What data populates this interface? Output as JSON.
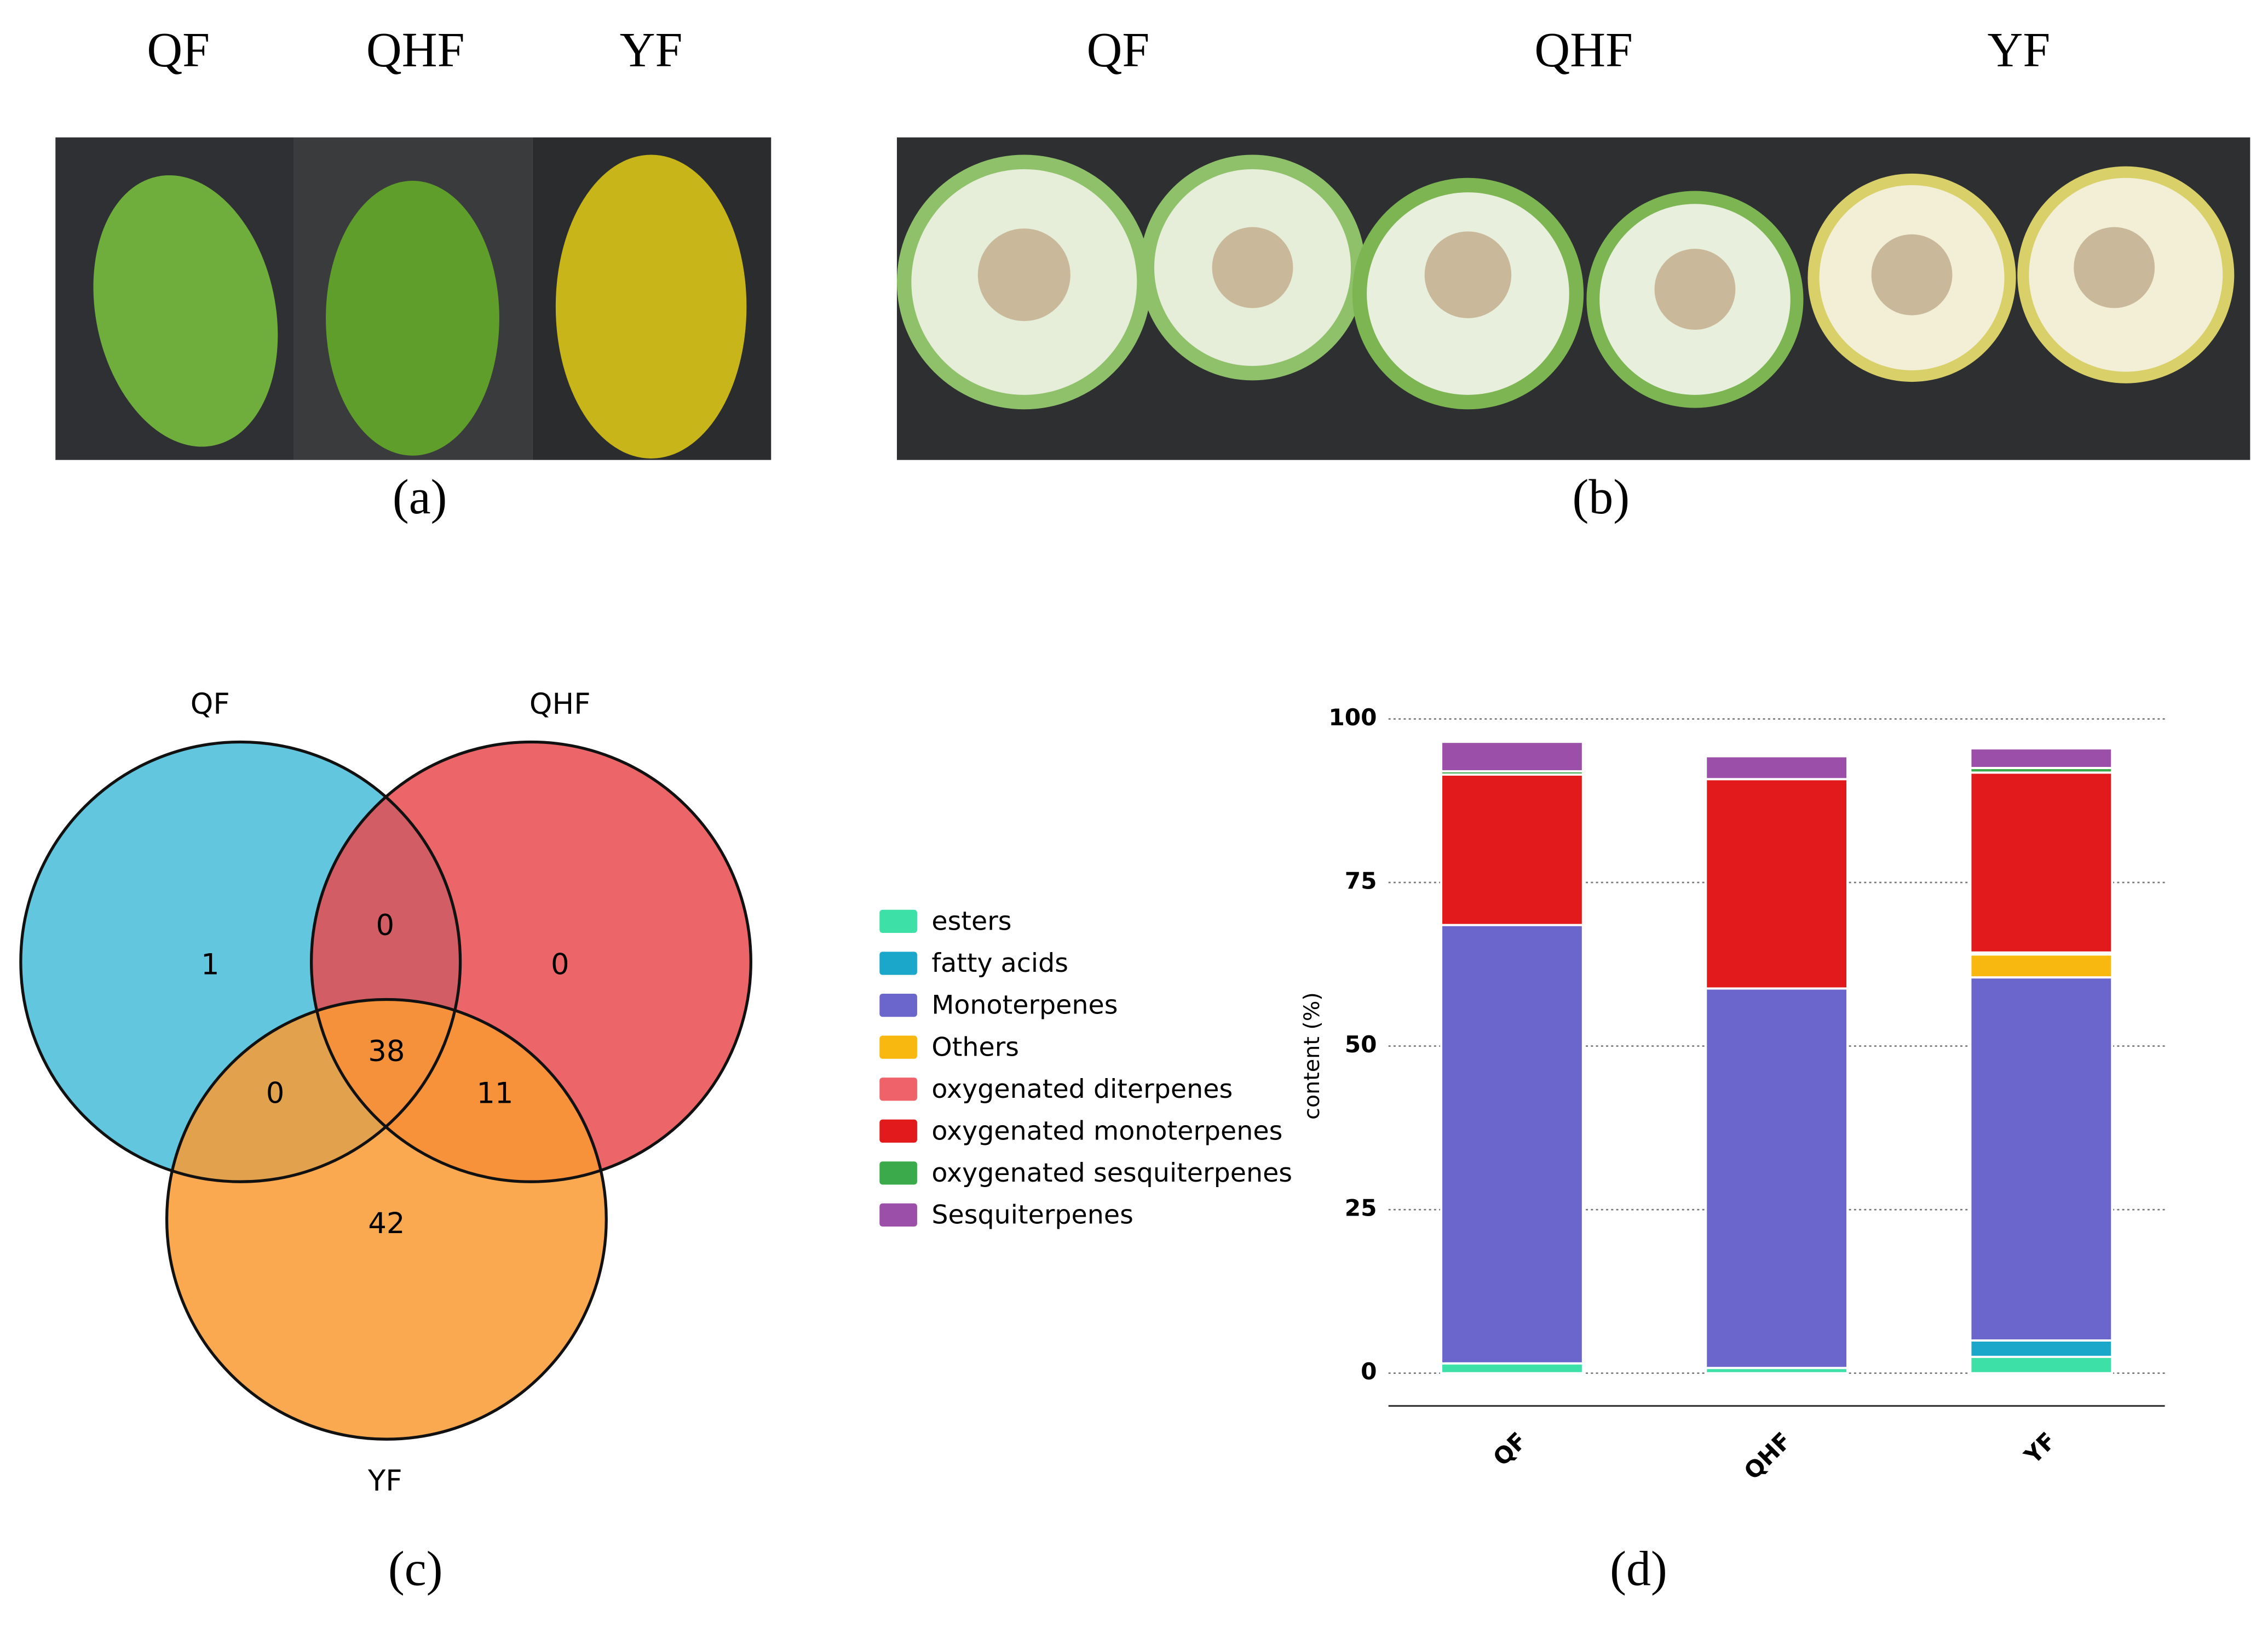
{
  "figure": {
    "panel_labels": [
      "(a)",
      "(b)",
      "(c)",
      "(d)"
    ],
    "photo_a_labels": [
      "QF",
      "QHF",
      "YF"
    ],
    "photo_b_labels": [
      "QF",
      "QHF",
      "YF"
    ]
  },
  "chart_data": [
    {
      "type": "venn",
      "sets": [
        "QF",
        "QHF",
        "YF"
      ],
      "colors": [
        "#45bcd8",
        "#e84a4f",
        "#f99a33"
      ],
      "values": [
        1,
        0,
        42,
        0,
        0,
        11,
        38
      ]
    },
    {
      "type": "stacked_bar",
      "ylabel": "content (%)",
      "categories": [
        "QF",
        "QHF",
        "YF"
      ],
      "series": [
        {
          "name": "esters",
          "color": "#3de0a6",
          "values": [
            1.5,
            0.8,
            2.5
          ]
        },
        {
          "name": "fatty acids",
          "color": "#1aa7c9",
          "values": [
            0,
            0,
            2.5
          ]
        },
        {
          "name": "Monoterpenes",
          "color": "#6b66cc",
          "values": [
            67,
            58,
            55.5
          ]
        },
        {
          "name": "Others",
          "color": "#f8b80f",
          "values": [
            0,
            0,
            3.5
          ]
        },
        {
          "name": "oxygenated diterpenes",
          "color": "#f0626a",
          "values": [
            0,
            0,
            0.3
          ]
        },
        {
          "name": "oxygenated monoterpenes",
          "color": "#e31a1c",
          "values": [
            23,
            32,
            27.5
          ]
        },
        {
          "name": "oxygenated sesquiterpenes",
          "color": "#3aaa4a",
          "values": [
            0.5,
            0,
            0.7
          ]
        },
        {
          "name": "Sesquiterpenes",
          "color": "#9b4fa8",
          "values": [
            4.5,
            3.5,
            3
          ]
        }
      ],
      "ylim": [
        -5,
        102
      ],
      "yticks": [
        0,
        25,
        50,
        75,
        100
      ],
      "grid": true
    }
  ]
}
